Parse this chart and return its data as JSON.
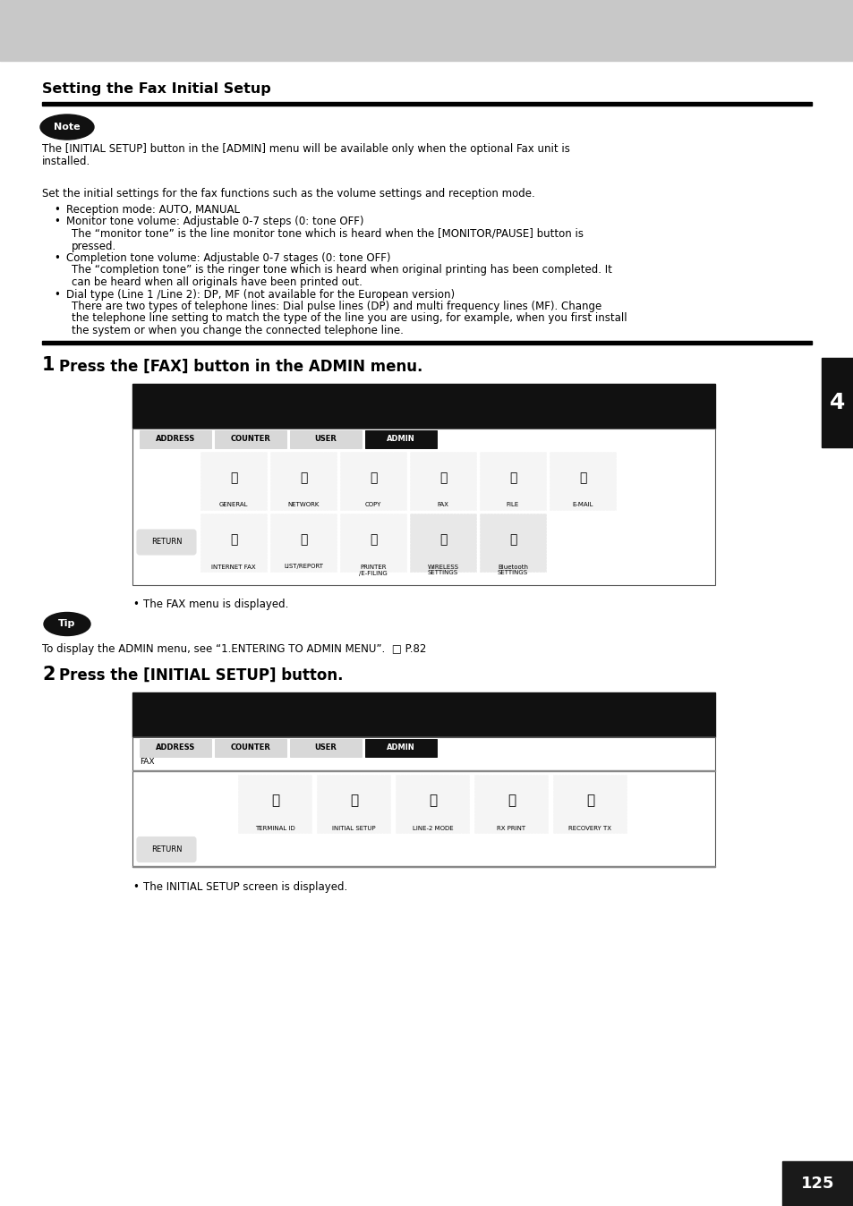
{
  "page_title": "Setting the Fax Initial Setup",
  "page_number": "125",
  "chapter_number": "4",
  "bg_color": "#ffffff",
  "header_bg": "#c8c8c8",
  "note_text_line1": "The [INITIAL SETUP] button in the [ADMIN] menu will be available only when the optional Fax unit is",
  "note_text_line2": "installed.",
  "intro_text": "Set the initial settings for the fax functions such as the volume settings and reception mode.",
  "bullet1": "Reception mode: AUTO, MANUAL",
  "bullet2_line1": "Monitor tone volume: Adjustable 0-7 steps (0: tone OFF)",
  "bullet2_line2": "The “monitor tone” is the line monitor tone which is heard when the [MONITOR/PAUSE] button is",
  "bullet2_line3": "pressed.",
  "bullet3_line1": "Completion tone volume: Adjustable 0-7 stages (0: tone OFF)",
  "bullet3_line2": "The “completion tone” is the ringer tone which is heard when original printing has been completed. It",
  "bullet3_line3": "can be heard when all originals have been printed out.",
  "bullet4_line1": "Dial type (Line 1 /Line 2): DP, MF (not available for the European version)",
  "bullet4_line2": "There are two types of telephone lines: Dial pulse lines (DP) and multi frequency lines (MF). Change",
  "bullet4_line3": "the telephone line setting to match the type of the line you are using, for example, when you first install",
  "bullet4_line4": "the system or when you change the connected telephone line.",
  "step1_title": "Press the [FAX] button in the ADMIN menu.",
  "step1_bullet": "The FAX menu is displayed.",
  "tip_text": "To display the ADMIN menu, see “1.ENTERING TO ADMIN MENU”.  □ P.82",
  "step2_title": "Press the [INITIAL SETUP] button.",
  "step2_bullet": "The INITIAL SETUP screen is displayed.",
  "screen1_tab_labels": [
    "ADDRESS",
    "COUNTER",
    "USER",
    "ADMIN"
  ],
  "screen1_icons_row1": [
    "GENERAL",
    "NETWORK",
    "COPY",
    "FAX",
    "FILE",
    "E-MAIL"
  ],
  "screen1_icons_row2": [
    "INTERNET FAX",
    "LIST/REPORT",
    "PRINTER\n/E-FILING",
    "WIRELESS\nSETTINGS",
    "Bluetooth\nSETTINGS"
  ],
  "screen2_tab_labels": [
    "ADDRESS",
    "COUNTER",
    "USER",
    "ADMIN"
  ],
  "screen2_fax_label": "FAX",
  "screen2_icons": [
    "TERMINAL ID",
    "INITIAL SETUP",
    "LINE-2 MODE",
    "RX PRINT",
    "RECOVERY TX"
  ]
}
